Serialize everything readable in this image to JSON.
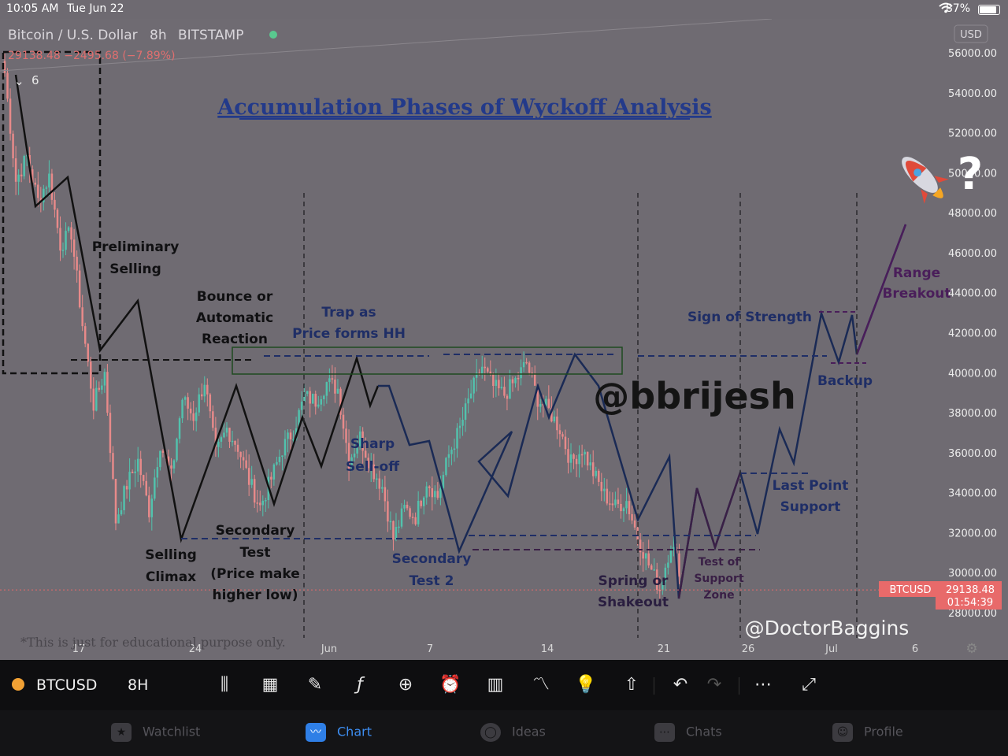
{
  "status_bar": {
    "time": "10:05 AM",
    "date": "Tue Jun 22",
    "battery": "87%"
  },
  "header": {
    "title": "Bitcoin / U.S. Dollar",
    "interval": "8h",
    "exchange": "BITSTAMP",
    "price_line": "29138.48 −2495.68 (−7.89%)",
    "currency": "USD",
    "indicator_count": "6"
  },
  "annotations": {
    "title": "Accumulation Phases of Wyckoff Analysis",
    "preliminary_selling": [
      "Preliminary",
      "Selling"
    ],
    "bounce": [
      "Bounce or",
      "Automatic",
      "Reaction"
    ],
    "trap": [
      "Trap as",
      "Price forms HH"
    ],
    "sharp_selloff": [
      "Sharp",
      "Sell-off"
    ],
    "selling_climax": [
      "Selling",
      "Climax"
    ],
    "secondary_test": [
      "Secondary",
      "Test",
      "(Price make",
      "higher low)"
    ],
    "secondary_test_2": [
      "Secondary",
      "Test 2"
    ],
    "spring": [
      "Spring or",
      "Shakeout"
    ],
    "test_of_support": [
      "Test of",
      "Support",
      "Zone"
    ],
    "sign_of_strength": "Sign of Strength",
    "backup": "Backup",
    "last_point_support": [
      "Last Point",
      "Support"
    ],
    "range_breakout": [
      "Range",
      "Breakout"
    ],
    "watermark": "@bbrijesh",
    "credit": "@DoctorBaggins",
    "disclaimer": "*This is just for educational purpose only.",
    "question_mark": "?"
  },
  "price_tag": {
    "symbol": "BTCUSD",
    "price": "29138.48",
    "countdown": "01:54:39"
  },
  "colors": {
    "up": "#52c2ad",
    "down": "#e88a8a",
    "wyckoff_line": "#1a2a55",
    "phase_text": "#1f2e66",
    "title_text": "#233a8a",
    "price_tag": "#e86a6a"
  },
  "chart_data": {
    "type": "line",
    "title": "Accumulation Phases of Wyckoff Analysis",
    "symbol": "BTCUSD",
    "interval": "8h",
    "y_axis": {
      "ticks": [
        "56000.00",
        "54000.00",
        "52000.00",
        "50000.00",
        "48000.00",
        "46000.00",
        "44000.00",
        "42000.00",
        "40000.00",
        "38000.00",
        "36000.00",
        "34000.00",
        "32000.00",
        "30000.00",
        "28000.00"
      ],
      "range": [
        27800,
        56200
      ]
    },
    "x_axis": {
      "ticks": [
        "17",
        "24",
        "Jun",
        "7",
        "14",
        "21",
        "26",
        "Jul",
        "6"
      ]
    },
    "last_price": 29138.48,
    "series": [
      {
        "name": "",
        "values": [
          55000,
          49600,
          50800,
          48600,
          49800,
          46400,
          47000,
          42400,
          38400,
          40000,
          32600,
          34400,
          35600,
          33100,
          36500,
          34800,
          38700,
          37800,
          39600,
          35900,
          37200,
          36300,
          34600,
          33300,
          34700,
          36200,
          37100,
          38800,
          38600,
          39500,
          39200,
          35600,
          36800,
          35300,
          34300,
          31700,
          33200,
          32800,
          34600,
          33800,
          35900,
          37200,
          39000,
          40300,
          39300,
          38900,
          39600,
          40500,
          38700,
          38100,
          37200,
          35500,
          36200,
          35000,
          33900,
          33300,
          33600,
          31800,
          30400,
          29200,
          31500,
          29800
        ]
      }
    ]
  },
  "toolbar": {
    "symbol": "BTCUSD",
    "interval": "8H"
  },
  "tabs": [
    {
      "label": "Watchlist"
    },
    {
      "label": "Chart"
    },
    {
      "label": "Ideas"
    },
    {
      "label": "Chats"
    },
    {
      "label": "Profile"
    }
  ]
}
